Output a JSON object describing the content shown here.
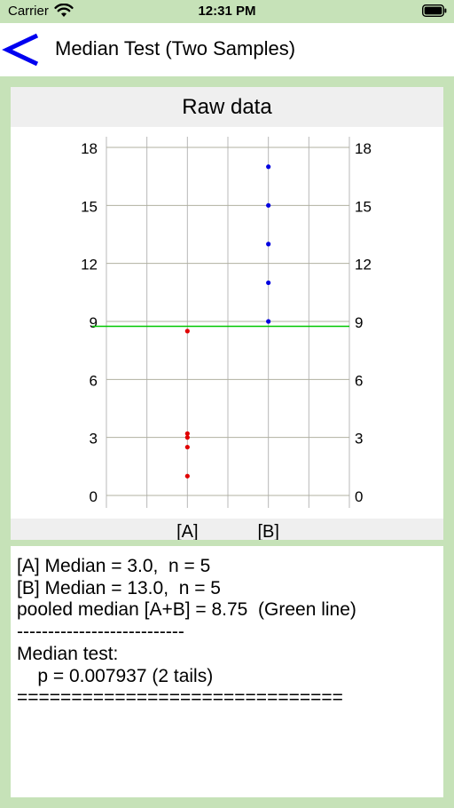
{
  "status_bar": {
    "carrier": "Carrier",
    "time": "12:31 PM"
  },
  "nav": {
    "back_icon": "chevron-left-icon",
    "title": "Median Test (Two Samples)"
  },
  "chart_data": {
    "type": "scatter",
    "title": "Raw data",
    "categories": [
      "[A]",
      "[B]"
    ],
    "ylim": [
      0,
      18
    ],
    "yticks": [
      0,
      3,
      6,
      9,
      12,
      15,
      18
    ],
    "grid": true,
    "series": [
      {
        "color": "#e00000",
        "category": "[A]",
        "values": [
          1.0,
          2.5,
          3.0,
          3.2,
          8.5
        ]
      },
      {
        "color": "#0000e0",
        "category": "[B]",
        "values": [
          9.0,
          11.0,
          13.0,
          15.0,
          17.0
        ]
      }
    ],
    "reference_line": {
      "value": 8.75,
      "color": "#00c800"
    }
  },
  "results": {
    "lines": [
      "[A] Median = 3.0,  n = 5",
      "[B] Median = 13.0,  n = 5",
      "pooled median [A+B] = 8.75  (Green line)",
      "---------------------------",
      "Median test:",
      "    p = 0.007937 (2 tails)",
      "=============================="
    ]
  }
}
